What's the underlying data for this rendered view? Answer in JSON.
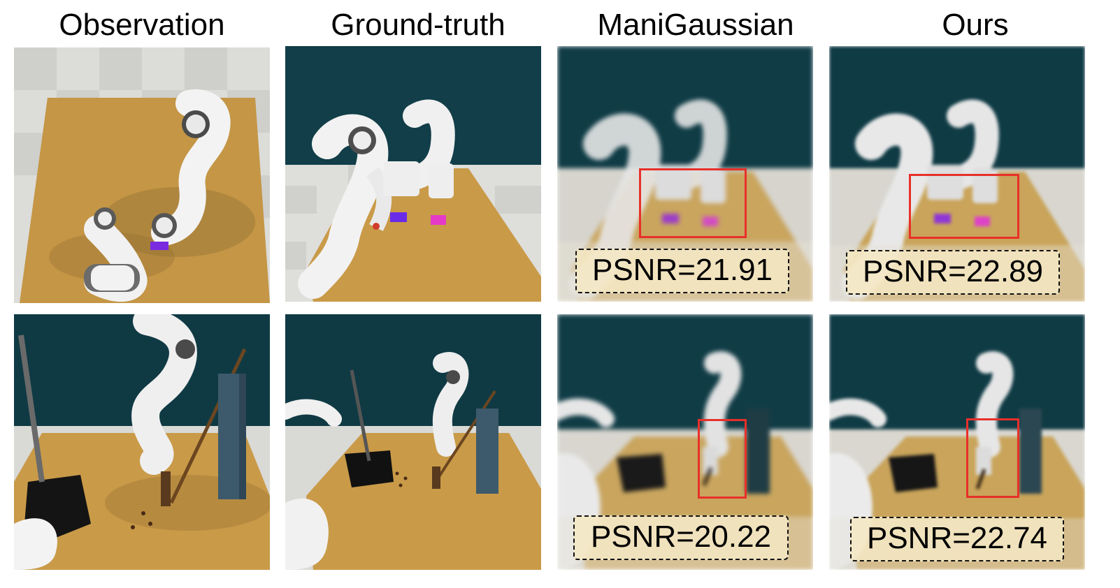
{
  "columns": [
    "Observation",
    "Ground-truth",
    "ManiGaussian",
    "Ours"
  ],
  "psnr": {
    "row1_manigaussian": "PSNR=21.91",
    "row1_ours": "PSNR=22.89",
    "row2_manigaussian": "PSNR=20.22",
    "row2_ours": "PSNR=22.74"
  },
  "colors": {
    "highlight_box": "#e8302a",
    "table_wood": "#c99a48",
    "wall_teal": "#0f3a44",
    "floor_tile": "#d9d9d6"
  }
}
